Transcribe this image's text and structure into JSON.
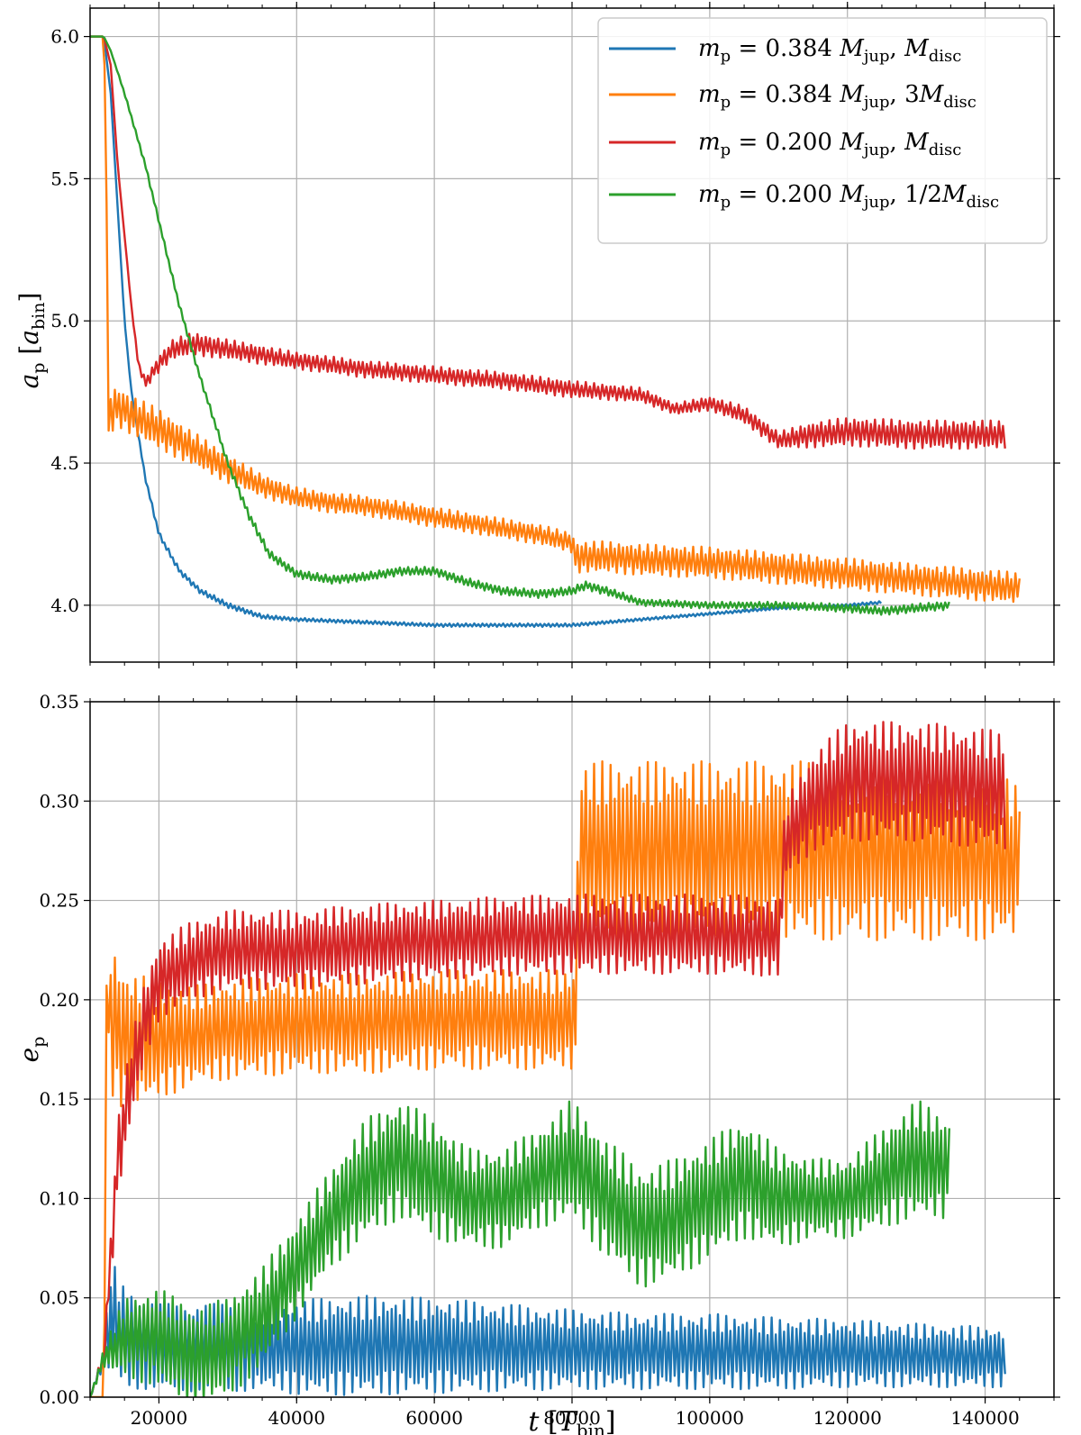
{
  "chart_data": [
    {
      "type": "line",
      "panel": "top",
      "ylabel": "a_p [a_bin]",
      "xlabel": "",
      "xlim": [
        10000,
        150000
      ],
      "ylim": [
        3.8,
        6.1
      ],
      "yticks": [
        "4.0",
        "4.5",
        "5.0",
        "5.5",
        "6.0"
      ],
      "ytick_values": [
        4.0,
        4.5,
        5.0,
        5.5,
        6.0
      ],
      "xticks": [
        20000,
        40000,
        60000,
        80000,
        100000,
        120000,
        140000
      ],
      "grid": true,
      "legend_position": "top-right",
      "series": [
        {
          "name": "m_p = 0.384 M_jup, M_disc",
          "color": "#1f77b4",
          "x": [
            10000,
            12000,
            13000,
            14000,
            15000,
            16000,
            18000,
            20000,
            23000,
            26000,
            30000,
            35000,
            40000,
            50000,
            60000,
            70000,
            80000,
            90000,
            100000,
            110000,
            120000,
            125000
          ],
          "y": [
            6.0,
            6.0,
            5.8,
            5.4,
            5.0,
            4.75,
            4.45,
            4.25,
            4.12,
            4.05,
            4.0,
            3.96,
            3.95,
            3.94,
            3.93,
            3.93,
            3.93,
            3.95,
            3.97,
            3.99,
            4.0,
            4.01
          ],
          "amp": [
            0,
            0,
            0,
            0,
            0,
            0.005,
            0.008,
            0.01,
            0.01,
            0.01,
            0.01,
            0.008,
            0.006,
            0.006,
            0.006,
            0.006,
            0.006,
            0.005,
            0.005,
            0.005,
            0.005,
            0.005
          ]
        },
        {
          "name": "m_p = 0.384 M_jup, 3M_disc",
          "color": "#ff7f0e",
          "x": [
            10000,
            12000,
            12300,
            12600,
            13000,
            14000,
            16000,
            20000,
            25000,
            30000,
            35000,
            40000,
            45000,
            50000,
            55000,
            60000,
            65000,
            70000,
            75000,
            80000,
            80500,
            85000,
            90000,
            100000,
            110000,
            120000,
            130000,
            140000,
            145000
          ],
          "y": [
            6.0,
            6.0,
            5.7,
            4.7,
            4.68,
            4.7,
            4.67,
            4.62,
            4.55,
            4.48,
            4.42,
            4.38,
            4.36,
            4.35,
            4.33,
            4.31,
            4.29,
            4.27,
            4.25,
            4.22,
            4.17,
            4.17,
            4.16,
            4.15,
            4.13,
            4.11,
            4.09,
            4.07,
            4.06
          ],
          "amp": [
            0,
            0,
            0,
            0.15,
            0.08,
            0.07,
            0.07,
            0.07,
            0.06,
            0.05,
            0.04,
            0.035,
            0.035,
            0.035,
            0.035,
            0.035,
            0.035,
            0.035,
            0.035,
            0.035,
            0.055,
            0.055,
            0.055,
            0.055,
            0.055,
            0.055,
            0.055,
            0.055,
            0.055
          ]
        },
        {
          "name": "m_p = 0.200 M_jup, M_disc",
          "color": "#d62728",
          "x": [
            10000,
            12000,
            13000,
            14000,
            15000,
            16000,
            17000,
            18000,
            20000,
            22000,
            25000,
            30000,
            40000,
            50000,
            60000,
            70000,
            80000,
            90000,
            95000,
            100000,
            105000,
            110000,
            115000,
            120000,
            130000,
            143000
          ],
          "y": [
            6.0,
            6.0,
            5.9,
            5.55,
            5.3,
            5.05,
            4.85,
            4.78,
            4.85,
            4.9,
            4.92,
            4.9,
            4.86,
            4.83,
            4.81,
            4.79,
            4.76,
            4.74,
            4.69,
            4.71,
            4.67,
            4.58,
            4.6,
            4.61,
            4.6,
            4.6
          ],
          "amp": [
            0,
            0,
            0,
            0,
            0,
            0.005,
            0.01,
            0.02,
            0.03,
            0.035,
            0.04,
            0.035,
            0.03,
            0.03,
            0.03,
            0.03,
            0.03,
            0.025,
            0.02,
            0.025,
            0.03,
            0.03,
            0.045,
            0.05,
            0.05,
            0.05
          ]
        },
        {
          "name": "m_p = 0.200 M_jup, 1/2 M_disc",
          "color": "#2ca02c",
          "x": [
            10000,
            12000,
            13000,
            15000,
            18000,
            20000,
            23000,
            26000,
            30000,
            33000,
            36000,
            40000,
            45000,
            50000,
            55000,
            60000,
            65000,
            70000,
            75000,
            80000,
            82000,
            85000,
            90000,
            100000,
            110000,
            120000,
            125000,
            130000,
            135000
          ],
          "y": [
            6.0,
            6.0,
            5.95,
            5.8,
            5.55,
            5.35,
            5.05,
            4.8,
            4.5,
            4.32,
            4.18,
            4.11,
            4.09,
            4.1,
            4.12,
            4.12,
            4.08,
            4.05,
            4.04,
            4.05,
            4.07,
            4.05,
            4.01,
            4.0,
            4.0,
            3.99,
            3.98,
            3.99,
            4.0
          ],
          "amp": [
            0,
            0,
            0,
            0.005,
            0.008,
            0.008,
            0.01,
            0.01,
            0.012,
            0.015,
            0.015,
            0.015,
            0.015,
            0.015,
            0.015,
            0.015,
            0.015,
            0.015,
            0.015,
            0.015,
            0.015,
            0.015,
            0.012,
            0.012,
            0.012,
            0.015,
            0.015,
            0.015,
            0.015
          ]
        }
      ]
    },
    {
      "type": "line",
      "panel": "bottom",
      "ylabel": "e_p",
      "xlabel": "t [T_bin]",
      "xlim": [
        10000,
        150000
      ],
      "ylim": [
        0.0,
        0.35
      ],
      "yticks": [
        "0.00",
        "0.05",
        "0.10",
        "0.15",
        "0.20",
        "0.25",
        "0.30",
        "0.35"
      ],
      "ytick_values": [
        0.0,
        0.05,
        0.1,
        0.15,
        0.2,
        0.25,
        0.3,
        0.35
      ],
      "xticks": [
        20000,
        40000,
        60000,
        80000,
        100000,
        120000,
        140000
      ],
      "xtick_labels": [
        "20000",
        "40000",
        "60000",
        "80000",
        "100000",
        "120000",
        "140000"
      ],
      "grid": true,
      "series": [
        {
          "name": "m_p = 0.384 M_jup, M_disc",
          "color": "#1f77b4",
          "x": [
            10000,
            12000,
            13000,
            15000,
            20000,
            30000,
            35000,
            38000,
            40000,
            50000,
            60000,
            70000,
            80000,
            90000,
            100000,
            110000,
            120000,
            130000,
            143000
          ],
          "y": [
            0.0,
            0.02,
            0.04,
            0.03,
            0.025,
            0.025,
            0.025,
            0.025,
            0.025,
            0.026,
            0.026,
            0.025,
            0.024,
            0.023,
            0.023,
            0.022,
            0.022,
            0.021,
            0.02
          ],
          "amp": [
            0,
            0.005,
            0.03,
            0.025,
            0.022,
            0.022,
            0.022,
            0.022,
            0.024,
            0.025,
            0.024,
            0.022,
            0.02,
            0.019,
            0.019,
            0.018,
            0.017,
            0.016,
            0.015
          ]
        },
        {
          "name": "m_p = 0.384 M_jup, 3M_disc",
          "color": "#ff7f0e",
          "x": [
            10000,
            12000,
            12500,
            13000,
            15000,
            20000,
            25000,
            30000,
            40000,
            50000,
            60000,
            70000,
            80000,
            80500,
            81000,
            85000,
            90000,
            100000,
            110000,
            120000,
            130000,
            145000
          ],
          "y": [
            0.0,
            0.0,
            0.22,
            0.19,
            0.18,
            0.18,
            0.182,
            0.185,
            0.188,
            0.188,
            0.19,
            0.19,
            0.19,
            0.19,
            0.275,
            0.275,
            0.275,
            0.275,
            0.275,
            0.275,
            0.275,
            0.27
          ],
          "amp": [
            0,
            0,
            0.04,
            0.04,
            0.035,
            0.03,
            0.025,
            0.025,
            0.025,
            0.025,
            0.025,
            0.025,
            0.025,
            0.025,
            0.045,
            0.045,
            0.045,
            0.045,
            0.045,
            0.045,
            0.045,
            0.04
          ]
        },
        {
          "name": "m_p = 0.200 M_jup, M_disc",
          "color": "#d62728",
          "x": [
            10000,
            12000,
            14000,
            16000,
            18000,
            20000,
            25000,
            30000,
            40000,
            50000,
            60000,
            70000,
            80000,
            90000,
            100000,
            109000,
            110000,
            111000,
            115000,
            120000,
            130000,
            143000
          ],
          "y": [
            0.0,
            0.02,
            0.12,
            0.16,
            0.19,
            0.21,
            0.22,
            0.225,
            0.225,
            0.228,
            0.23,
            0.232,
            0.233,
            0.233,
            0.233,
            0.232,
            0.23,
            0.28,
            0.3,
            0.31,
            0.31,
            0.305
          ],
          "amp": [
            0,
            0.005,
            0.02,
            0.02,
            0.02,
            0.02,
            0.02,
            0.02,
            0.02,
            0.02,
            0.02,
            0.02,
            0.02,
            0.02,
            0.02,
            0.02,
            0.02,
            0.02,
            0.025,
            0.03,
            0.03,
            0.03
          ]
        },
        {
          "name": "m_p = 0.200 M_jup, 1/2 M_disc",
          "color": "#2ca02c",
          "x": [
            10000,
            12000,
            15000,
            20000,
            25000,
            30000,
            35000,
            40000,
            45000,
            50000,
            55000,
            60000,
            65000,
            70000,
            75000,
            80000,
            85000,
            90000,
            95000,
            100000,
            105000,
            110000,
            115000,
            120000,
            125000,
            130000,
            135000
          ],
          "y": [
            0.0,
            0.02,
            0.03,
            0.03,
            0.02,
            0.025,
            0.04,
            0.065,
            0.09,
            0.11,
            0.12,
            0.11,
            0.1,
            0.1,
            0.11,
            0.12,
            0.1,
            0.085,
            0.09,
            0.1,
            0.11,
            0.1,
            0.1,
            0.1,
            0.11,
            0.12,
            0.115
          ],
          "amp": [
            0,
            0.005,
            0.02,
            0.025,
            0.025,
            0.025,
            0.025,
            0.025,
            0.025,
            0.03,
            0.03,
            0.03,
            0.025,
            0.025,
            0.025,
            0.03,
            0.03,
            0.03,
            0.03,
            0.03,
            0.03,
            0.025,
            0.02,
            0.02,
            0.025,
            0.03,
            0.025
          ]
        }
      ]
    }
  ],
  "legend": {
    "entries": [
      {
        "label_main": "m",
        "label_sub": "p",
        "eq": " = 0.384 ",
        "mass": "M",
        "mass_sub": "jup",
        "sep": ",  ",
        "disc_prefix": "",
        "disc": "M",
        "disc_sub": "disc",
        "color": "#1f77b4"
      },
      {
        "label_main": "m",
        "label_sub": "p",
        "eq": " = 0.384 ",
        "mass": "M",
        "mass_sub": "jup",
        "sep": ",  ",
        "disc_prefix": "3",
        "disc": "M",
        "disc_sub": "disc",
        "color": "#ff7f0e"
      },
      {
        "label_main": "m",
        "label_sub": "p",
        "eq": " = 0.200 ",
        "mass": "M",
        "mass_sub": "jup",
        "sep": ",  ",
        "disc_prefix": "",
        "disc": "M",
        "disc_sub": "disc",
        "color": "#d62728"
      },
      {
        "label_main": "m",
        "label_sub": "p",
        "eq": " = 0.200 ",
        "mass": "M",
        "mass_sub": "jup",
        "sep": ",  ",
        "disc_prefix": "1/2",
        "disc": "M",
        "disc_sub": "disc",
        "color": "#2ca02c"
      }
    ]
  },
  "axis_labels": {
    "top_y_main": "a",
    "top_y_sub": "p",
    "top_y_unit_main": "a",
    "top_y_unit_sub": "bin",
    "bottom_y_main": "e",
    "bottom_y_sub": "p",
    "x_main": "t",
    "x_unit_main": "T",
    "x_unit_sub": "bin"
  }
}
